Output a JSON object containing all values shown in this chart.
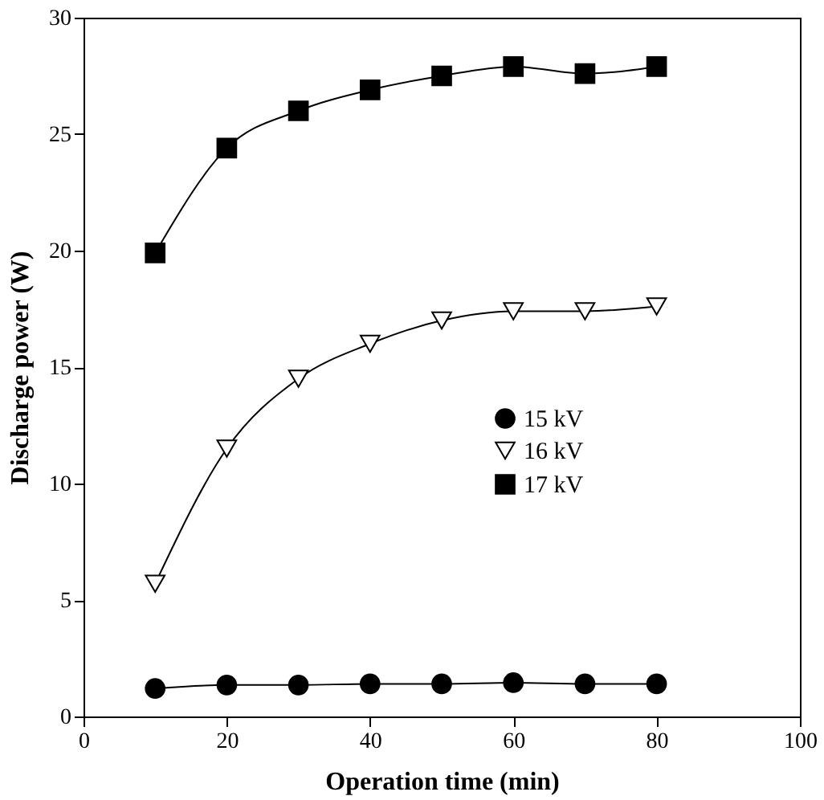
{
  "chart_data": {
    "type": "line",
    "xlabel": "Operation time (min)",
    "ylabel": "Discharge power (W)",
    "x": [
      10,
      20,
      30,
      40,
      50,
      60,
      70,
      80
    ],
    "series": [
      {
        "name": "15 kV",
        "color": "#000000",
        "marker": "circle",
        "values": [
          1.2,
          1.35,
          1.35,
          1.4,
          1.4,
          1.45,
          1.4,
          1.4
        ]
      },
      {
        "name": "16 kV",
        "color": "#000000",
        "marker": "triangle",
        "values": [
          5.7,
          11.5,
          14.5,
          16.0,
          17.0,
          17.4,
          17.4,
          17.6
        ]
      },
      {
        "name": "17 kV",
        "color": "#000000",
        "marker": "square",
        "values": [
          19.9,
          24.4,
          26.0,
          26.9,
          27.5,
          27.9,
          27.6,
          27.9
        ]
      }
    ],
    "xlim": [
      0,
      100
    ],
    "xticks": [
      0,
      20,
      40,
      60,
      80,
      100
    ],
    "ylim": [
      0,
      30
    ],
    "yticks": [
      0,
      5,
      10,
      15,
      20,
      25,
      30
    ],
    "grid": false,
    "legend": "right",
    "line_style": "solid"
  }
}
